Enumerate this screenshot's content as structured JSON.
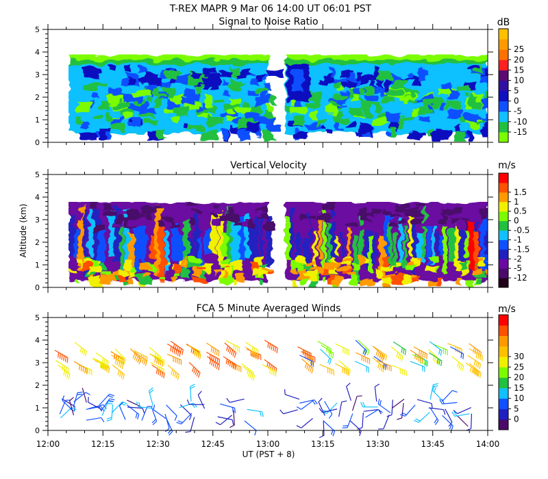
{
  "header": {
    "title": "T-REX   MAPR   9 Mar 06   14:00 UT   06:01   PST"
  },
  "y_axis_label": "Altitude (km)",
  "chart_data": [
    {
      "type": "heatmap",
      "title": "Signal to Noise Ratio",
      "ylim": [
        0,
        5
      ],
      "yticks": [
        "0",
        "1",
        "2",
        "3",
        "4",
        "5"
      ],
      "xlim_ut_hours": [
        12.0,
        14.0
      ],
      "data_gap_ut_hours": [
        13.0,
        13.08
      ],
      "echo_top_km": 3.8,
      "colorbar": {
        "unit": "dB",
        "labels": [
          "-15",
          "-10",
          "-5",
          "0",
          "5",
          "10",
          "15",
          "20",
          "25"
        ],
        "colors": [
          "#7cfc00",
          "#20c040",
          "#10c0ff",
          "#1050ff",
          "#1010c0",
          "#3010a0",
          "#5a0a70",
          "#ff2020",
          "#ff7000",
          "#ff9a00",
          "#ffc000"
        ]
      }
    },
    {
      "type": "heatmap",
      "title": "Vertical Velocity",
      "ylim": [
        0,
        5
      ],
      "yticks": [
        "0",
        "1",
        "2",
        "3",
        "4",
        "5"
      ],
      "xlim_ut_hours": [
        12.0,
        14.0
      ],
      "data_gap_ut_hours": [
        13.0,
        13.08
      ],
      "echo_top_km": 3.9,
      "colorbar": {
        "unit": "m/s",
        "labels": [
          "-12",
          "-5",
          "-2",
          "-1.5",
          "-1",
          "-0.5",
          "0",
          "0.5",
          "1",
          "1.5"
        ],
        "colors": [
          "#200018",
          "#4a0a6a",
          "#6a0aa0",
          "#2020c0",
          "#1050ff",
          "#10c0ff",
          "#20c040",
          "#7cfc00",
          "#f0f000",
          "#ff9a00",
          "#ff5000",
          "#ff0000"
        ]
      }
    },
    {
      "type": "wind_barbs",
      "title": "FCA 5 Minute Averaged Winds",
      "ylim": [
        0,
        5
      ],
      "yticks": [
        "0",
        "1",
        "2",
        "3",
        "4",
        "5"
      ],
      "xlim_ut_hours": [
        12.0,
        14.0
      ],
      "upper_layer_km": [
        2.7,
        4.1
      ],
      "lower_layer_km": [
        0.3,
        1.3
      ],
      "colorbar": {
        "unit": "m/s",
        "labels": [
          "0",
          "5",
          "10",
          "15",
          "20",
          "25",
          "30"
        ],
        "colors": [
          "#4a0a6a",
          "#2020c0",
          "#1050ff",
          "#10c0ff",
          "#20c040",
          "#7cfc00",
          "#f0f000",
          "#ffc000",
          "#ff9a00",
          "#ff5000",
          "#ff0000"
        ]
      }
    }
  ],
  "x_axis": {
    "ticks": [
      "12:00",
      "12:15",
      "12:30",
      "12:45",
      "13:00",
      "13:15",
      "13:30",
      "13:45",
      "14:00"
    ],
    "tick_hours": [
      12.0,
      12.25,
      12.5,
      12.75,
      13.0,
      13.25,
      13.5,
      13.75,
      14.0
    ],
    "label": "UT  (PST + 8)"
  }
}
